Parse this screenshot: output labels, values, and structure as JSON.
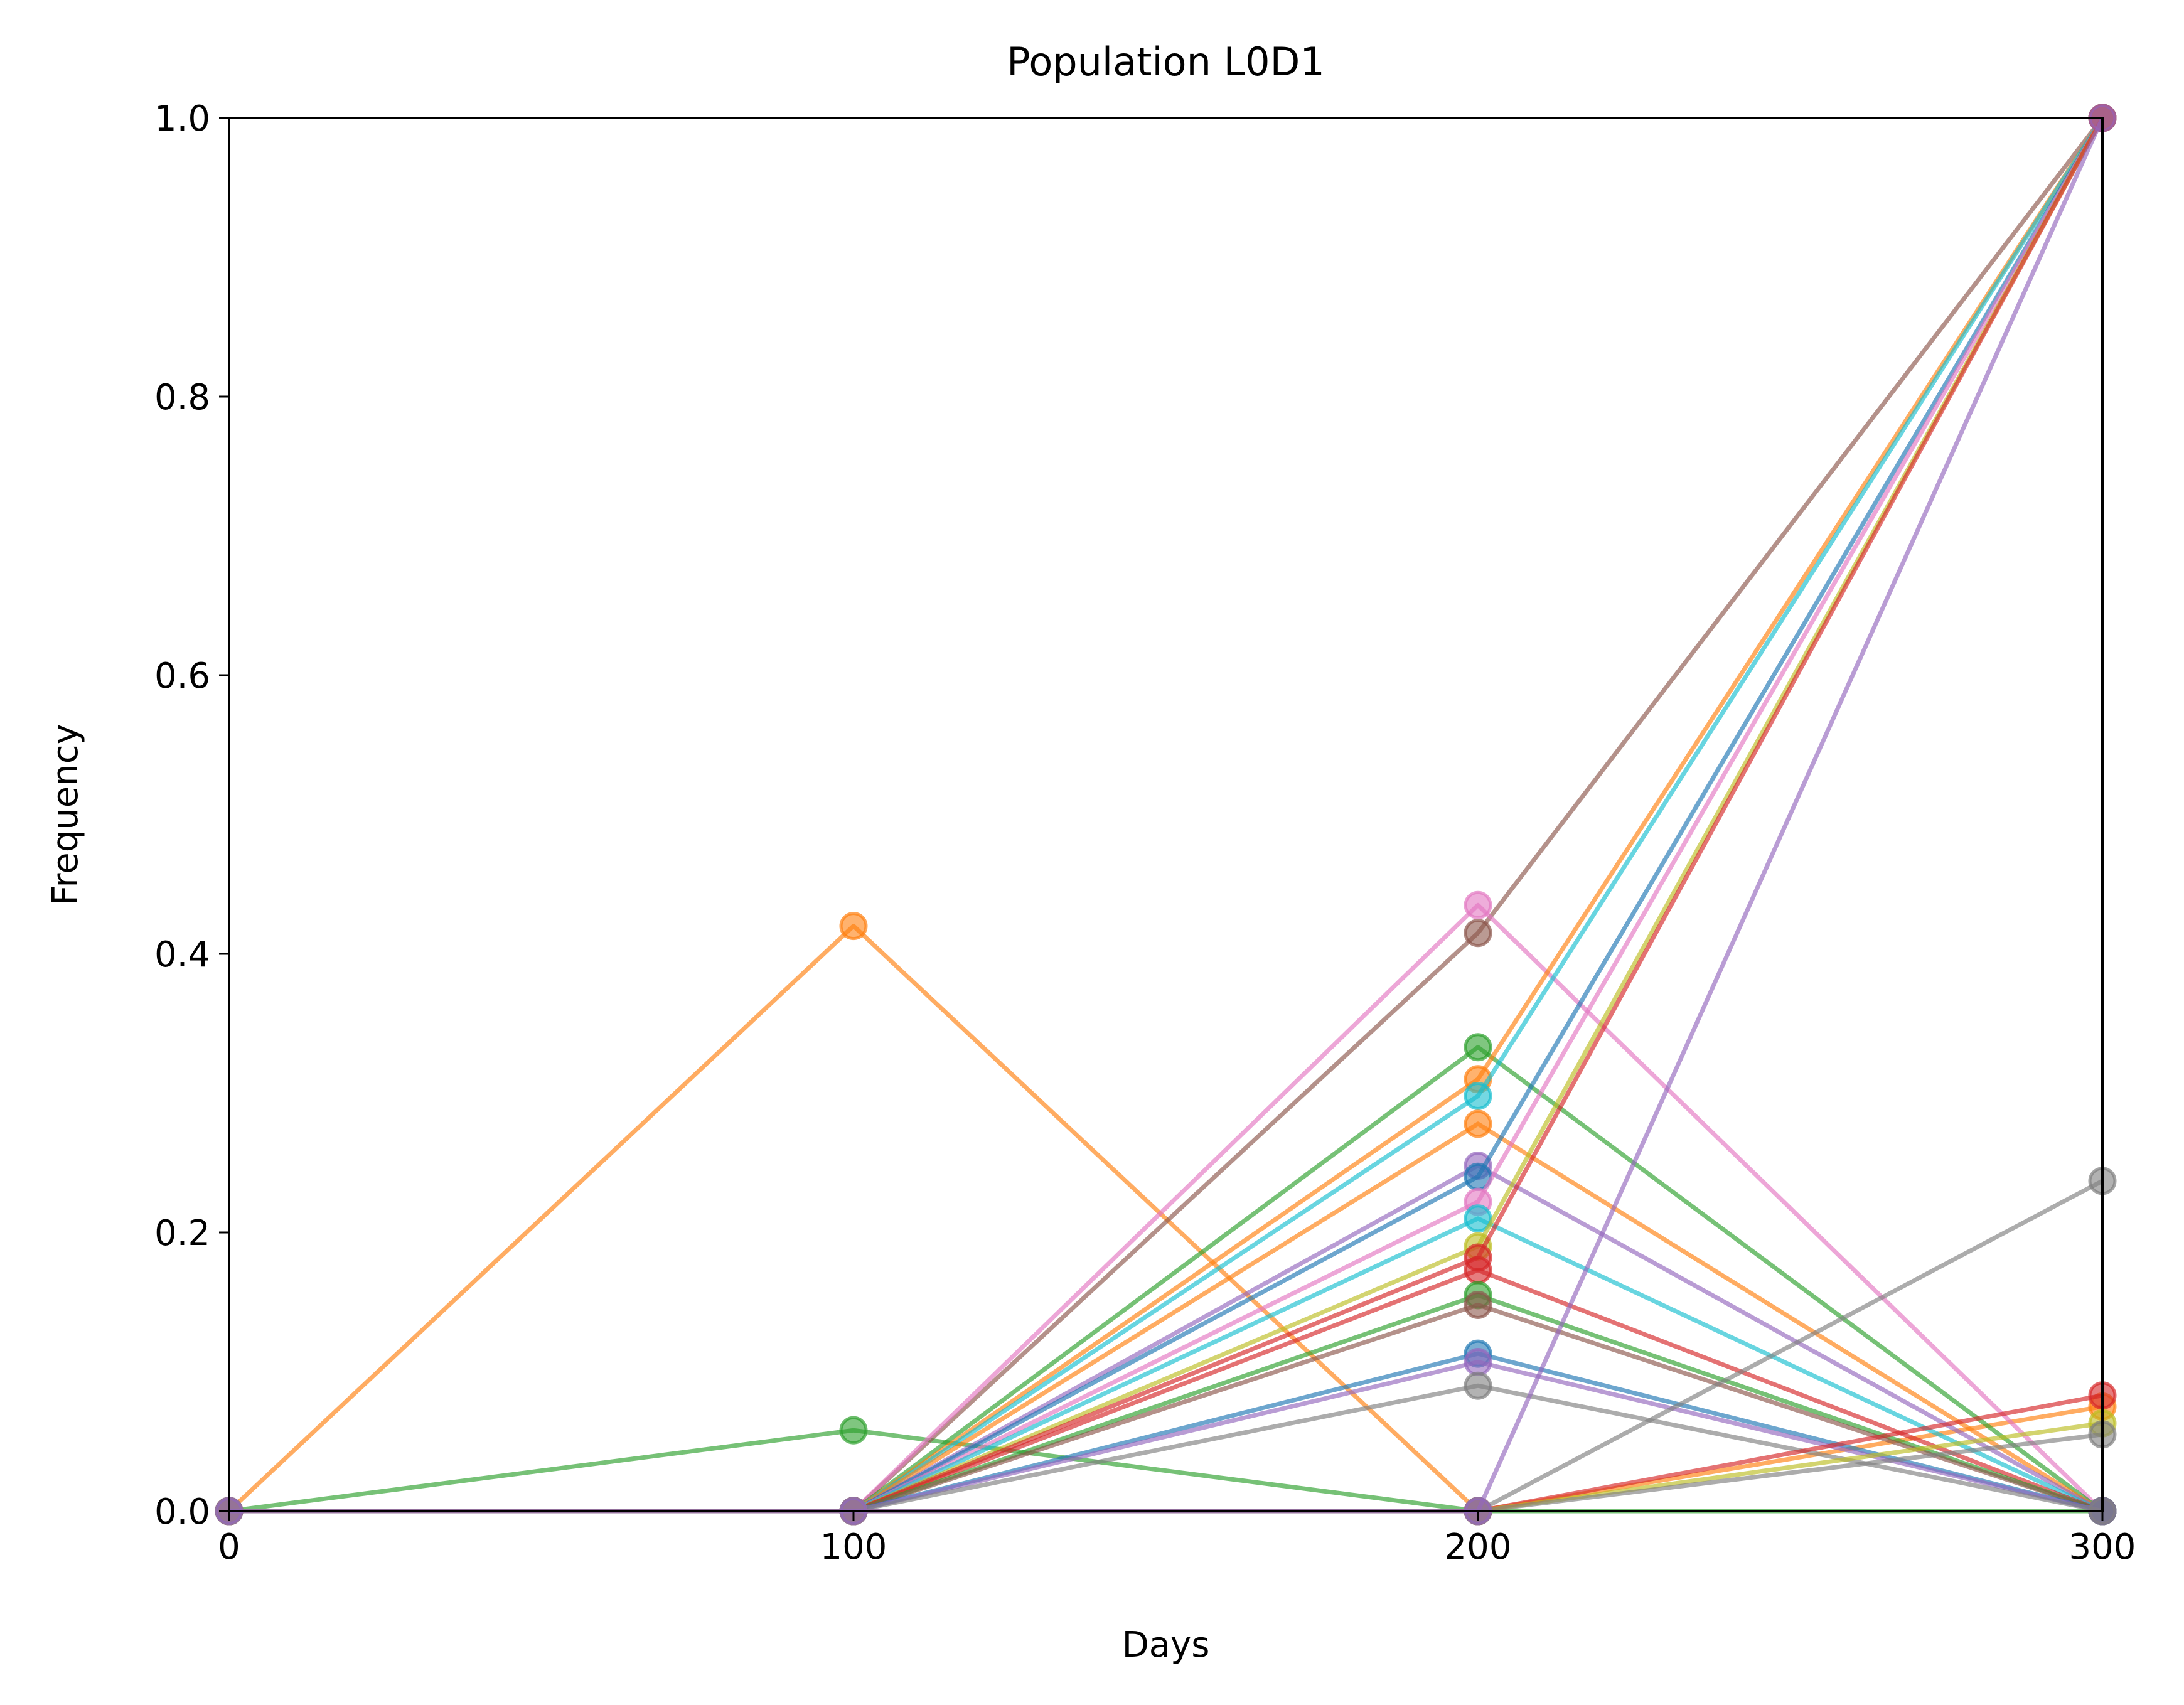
{
  "chart_data": {
    "type": "line",
    "title": "Population L0D1",
    "xlabel": "Days",
    "ylabel": "Frequency",
    "xlim": [
      0,
      300
    ],
    "ylim": [
      0,
      1
    ],
    "xticks": [
      0,
      100,
      200,
      300
    ],
    "xtick_labels": [
      "0",
      "100",
      "200",
      "300"
    ],
    "yticks": [
      0,
      0.2,
      0.4,
      0.6,
      0.8,
      1.0
    ],
    "ytick_labels": [
      "0.0",
      "0.2",
      "0.4",
      "0.6",
      "0.8",
      "1.0"
    ],
    "grid": false,
    "legend": "none",
    "x": [
      0,
      100,
      200,
      300
    ],
    "series": [
      {
        "color": "#ff7f0e",
        "values": [
          0,
          0.42,
          0,
          0.075
        ]
      },
      {
        "color": "#2ca02c",
        "values": [
          0,
          0.058,
          0,
          0
        ]
      },
      {
        "color": "#8c564b",
        "values": [
          0,
          0,
          0.415,
          1.0
        ]
      },
      {
        "color": "#e377c2",
        "values": [
          0,
          0,
          0.435,
          0
        ]
      },
      {
        "color": "#2ca02c",
        "values": [
          0,
          0,
          0.333,
          0
        ]
      },
      {
        "color": "#ff7f0e",
        "values": [
          0,
          0,
          0.31,
          1.0
        ]
      },
      {
        "color": "#17becf",
        "values": [
          0,
          0,
          0.298,
          1.0
        ]
      },
      {
        "color": "#ff7f0e",
        "values": [
          0,
          0,
          0.278,
          0
        ]
      },
      {
        "color": "#9467bd",
        "values": [
          0,
          0,
          0.248,
          0
        ]
      },
      {
        "color": "#1f77b4",
        "values": [
          0,
          0,
          0.24,
          1.0
        ]
      },
      {
        "color": "#e377c2",
        "values": [
          0,
          0,
          0.222,
          1.0
        ]
      },
      {
        "color": "#17becf",
        "values": [
          0,
          0,
          0.21,
          0
        ]
      },
      {
        "color": "#bcbd22",
        "values": [
          0,
          0,
          0.19,
          1.0
        ]
      },
      {
        "color": "#d62728",
        "values": [
          0,
          0,
          0.182,
          1.0
        ]
      },
      {
        "color": "#d62728",
        "values": [
          0,
          0,
          0.173,
          0
        ]
      },
      {
        "color": "#2ca02c",
        "values": [
          0,
          0,
          0.155,
          0
        ]
      },
      {
        "color": "#8c564b",
        "values": [
          0,
          0,
          0.148,
          0
        ]
      },
      {
        "color": "#1f77b4",
        "values": [
          0,
          0,
          0.113,
          0
        ]
      },
      {
        "color": "#9467bd",
        "values": [
          0,
          0,
          0.107,
          0
        ]
      },
      {
        "color": "#7f7f7f",
        "values": [
          0,
          0,
          0.09,
          0
        ]
      },
      {
        "color": "#7f7f7f",
        "values": [
          0,
          0,
          0,
          0.237
        ]
      },
      {
        "color": "#d62728",
        "values": [
          0,
          0,
          0,
          0.083
        ]
      },
      {
        "color": "#bcbd22",
        "values": [
          0,
          0,
          0,
          0.063
        ]
      },
      {
        "color": "#7f7f7f",
        "values": [
          0,
          0,
          0,
          0.055
        ]
      },
      {
        "color": "#9467bd",
        "values": [
          0,
          0,
          0,
          1.0
        ]
      }
    ]
  }
}
